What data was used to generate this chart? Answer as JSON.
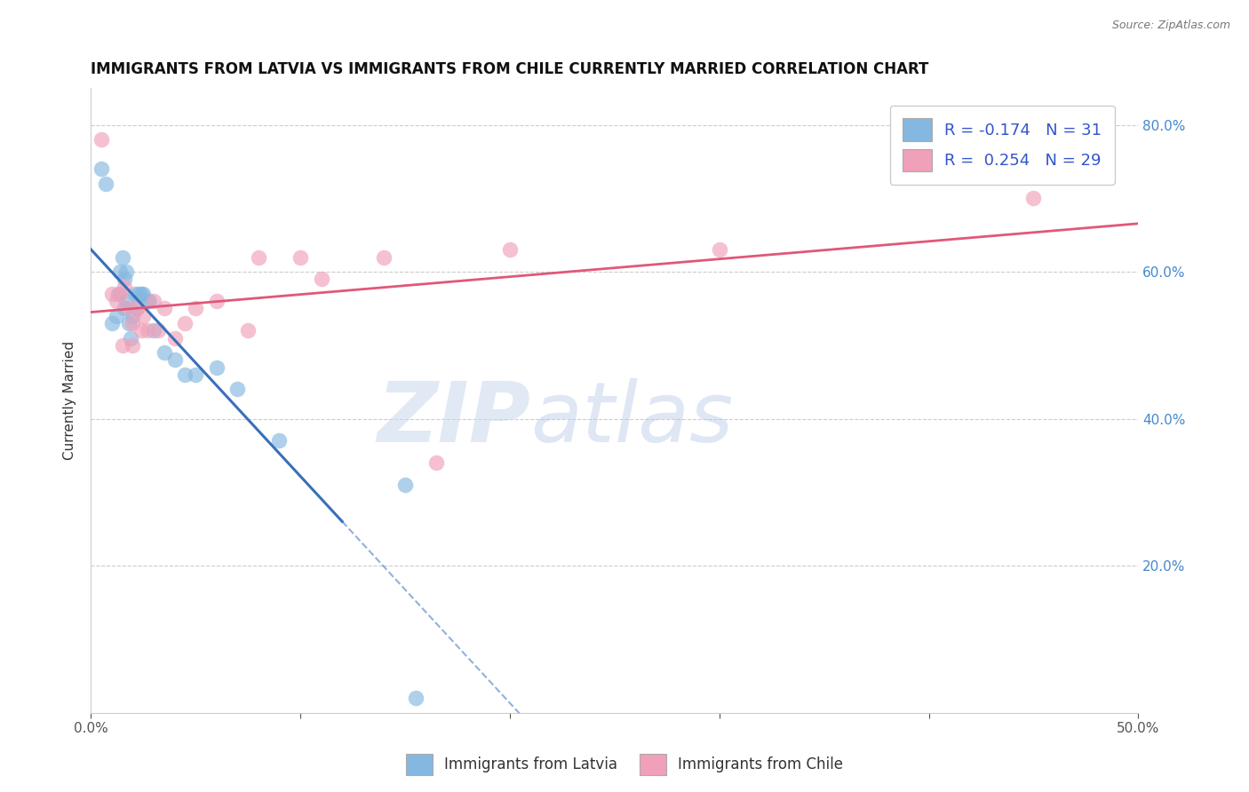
{
  "title": "IMMIGRANTS FROM LATVIA VS IMMIGRANTS FROM CHILE CURRENTLY MARRIED CORRELATION CHART",
  "source": "Source: ZipAtlas.com",
  "ylabel": "Currently Married",
  "xlim": [
    0.0,
    0.5
  ],
  "ylim": [
    0.0,
    0.85
  ],
  "xtick_positions": [
    0.0,
    0.1,
    0.2,
    0.3,
    0.4,
    0.5
  ],
  "xticklabels": [
    "0.0%",
    "",
    "",
    "",
    "",
    "50.0%"
  ],
  "ytick_positions": [
    0.2,
    0.4,
    0.6,
    0.8
  ],
  "ytick_right_labels": [
    "20.0%",
    "40.0%",
    "60.0%",
    "80.0%"
  ],
  "latvia_color": "#85b8e0",
  "latvia_line_color": "#3a6fba",
  "chile_color": "#f0a0b8",
  "chile_line_color": "#e05878",
  "latvia_x": [
    0.005,
    0.007,
    0.01,
    0.012,
    0.013,
    0.014,
    0.015,
    0.016,
    0.016,
    0.017,
    0.017,
    0.018,
    0.019,
    0.02,
    0.021,
    0.022,
    0.023,
    0.024,
    0.025,
    0.027,
    0.028,
    0.03,
    0.035,
    0.04,
    0.045,
    0.05,
    0.06,
    0.07,
    0.09,
    0.15,
    0.155
  ],
  "latvia_y": [
    0.74,
    0.72,
    0.53,
    0.54,
    0.57,
    0.6,
    0.62,
    0.59,
    0.55,
    0.6,
    0.56,
    0.53,
    0.51,
    0.54,
    0.57,
    0.55,
    0.57,
    0.57,
    0.57,
    0.56,
    0.56,
    0.52,
    0.49,
    0.48,
    0.46,
    0.46,
    0.47,
    0.44,
    0.37,
    0.31,
    0.02
  ],
  "chile_x": [
    0.005,
    0.01,
    0.012,
    0.014,
    0.016,
    0.018,
    0.02,
    0.022,
    0.024,
    0.025,
    0.027,
    0.03,
    0.032,
    0.035,
    0.04,
    0.045,
    0.05,
    0.06,
    0.075,
    0.1,
    0.11,
    0.14,
    0.165,
    0.2,
    0.3,
    0.45,
    0.015,
    0.02,
    0.08
  ],
  "chile_y": [
    0.78,
    0.57,
    0.56,
    0.57,
    0.58,
    0.55,
    0.53,
    0.55,
    0.52,
    0.54,
    0.52,
    0.56,
    0.52,
    0.55,
    0.51,
    0.53,
    0.55,
    0.56,
    0.52,
    0.62,
    0.59,
    0.62,
    0.34,
    0.63,
    0.63,
    0.7,
    0.5,
    0.5,
    0.62
  ],
  "watermark_zip": "ZIP",
  "watermark_atlas": "atlas",
  "background_color": "#ffffff",
  "grid_color": "#cccccc",
  "title_fontsize": 12,
  "axis_label_fontsize": 11,
  "tick_fontsize": 11,
  "dot_size": 160
}
